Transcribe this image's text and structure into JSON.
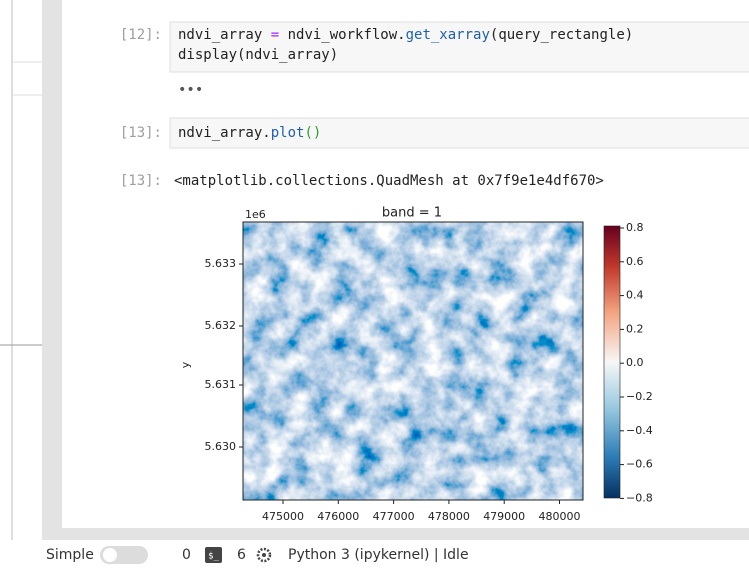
{
  "cells": [
    {
      "prompt": "[12]:",
      "code_lines": [
        [
          "ndvi_array ",
          "=",
          " ndvi_workflow.",
          "get_xarray",
          "(query_rectangle)"
        ],
        [
          "display(ndvi_array)"
        ]
      ],
      "collapsed_output": "•••"
    },
    {
      "prompt": "[13]:",
      "code_lines": [
        [
          "ndvi_array.",
          "plot",
          "()"
        ]
      ],
      "output": {
        "prompt": "[13]:",
        "text": "<matplotlib.collections.QuadMesh at 0x7f9e1e4df670>",
        "plot": {
          "title": "band = 1",
          "offset_text": "1e6",
          "ylabel": "y",
          "yticks": [
            "5.633",
            "5.632",
            "5.631",
            "5.630"
          ],
          "xticks": [
            "475000",
            "476000",
            "477000",
            "478000",
            "479000",
            "480000"
          ],
          "colorbar_ticks": [
            "0.8",
            "0.6",
            "0.4",
            "0.2",
            "0.0",
            "−0.2",
            "−0.4",
            "−0.6",
            "−0.8"
          ]
        }
      }
    }
  ],
  "status": {
    "mode": "Simple",
    "kernels": "0",
    "terminal_icon": "$_",
    "count": "6",
    "kernel": "Python 3 (ipykernel) | Idle"
  }
}
